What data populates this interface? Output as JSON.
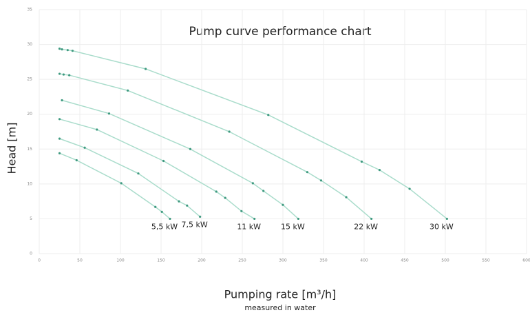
{
  "chart_data": {
    "type": "line",
    "title": "Pump curve performance chart",
    "x_label": "Pumping rate [m³/h]",
    "x_sublabel": "measured in water",
    "y_label": "Head [m]",
    "xlim": [
      0,
      600
    ],
    "xticks": [
      0,
      50,
      100,
      150,
      200,
      250,
      300,
      350,
      400,
      450,
      500,
      550,
      600
    ],
    "ylim": [
      0,
      35
    ],
    "yticks": [
      0,
      5,
      10,
      15,
      20,
      25,
      30,
      35
    ],
    "grid": true,
    "series": [
      {
        "name": "5,5 kW",
        "color": "#a9dccb",
        "x": [
          25,
          46,
          101,
          143,
          151,
          161
        ],
        "values": [
          14.4,
          13.4,
          10.1,
          6.7,
          6,
          5
        ]
      },
      {
        "name": "7,5 kW",
        "color": "#a9dccb",
        "x": [
          25,
          56,
          122,
          172,
          182,
          198
        ],
        "values": [
          16.5,
          15.2,
          11.5,
          7.5,
          6.9,
          5.3
        ]
      },
      {
        "name": "11 kW",
        "color": "#a9dccb",
        "x": [
          25,
          71,
          153,
          218,
          229,
          249,
          265
        ],
        "values": [
          19.3,
          17.8,
          13.3,
          8.9,
          8,
          6.1,
          5
        ]
      },
      {
        "name": "15 kW",
        "color": "#a9dccb",
        "x": [
          28,
          86,
          186,
          263,
          276,
          300,
          319
        ],
        "values": [
          22,
          20.1,
          15,
          10.1,
          9,
          7,
          5
        ]
      },
      {
        "name": "22 kW",
        "color": "#a9dccb",
        "x": [
          25,
          30,
          37,
          109,
          234,
          330,
          347,
          378,
          409
        ],
        "values": [
          25.8,
          25.7,
          25.6,
          23.4,
          17.5,
          11.7,
          10.5,
          8.1,
          5
        ]
      },
      {
        "name": "30 kW",
        "color": "#a9dccb",
        "x": [
          25,
          28,
          35,
          41,
          131,
          282,
          397,
          419,
          456,
          502
        ],
        "values": [
          29.4,
          29.3,
          29.2,
          29.1,
          26.5,
          19.9,
          13.2,
          12,
          9.3,
          5
        ]
      }
    ]
  }
}
